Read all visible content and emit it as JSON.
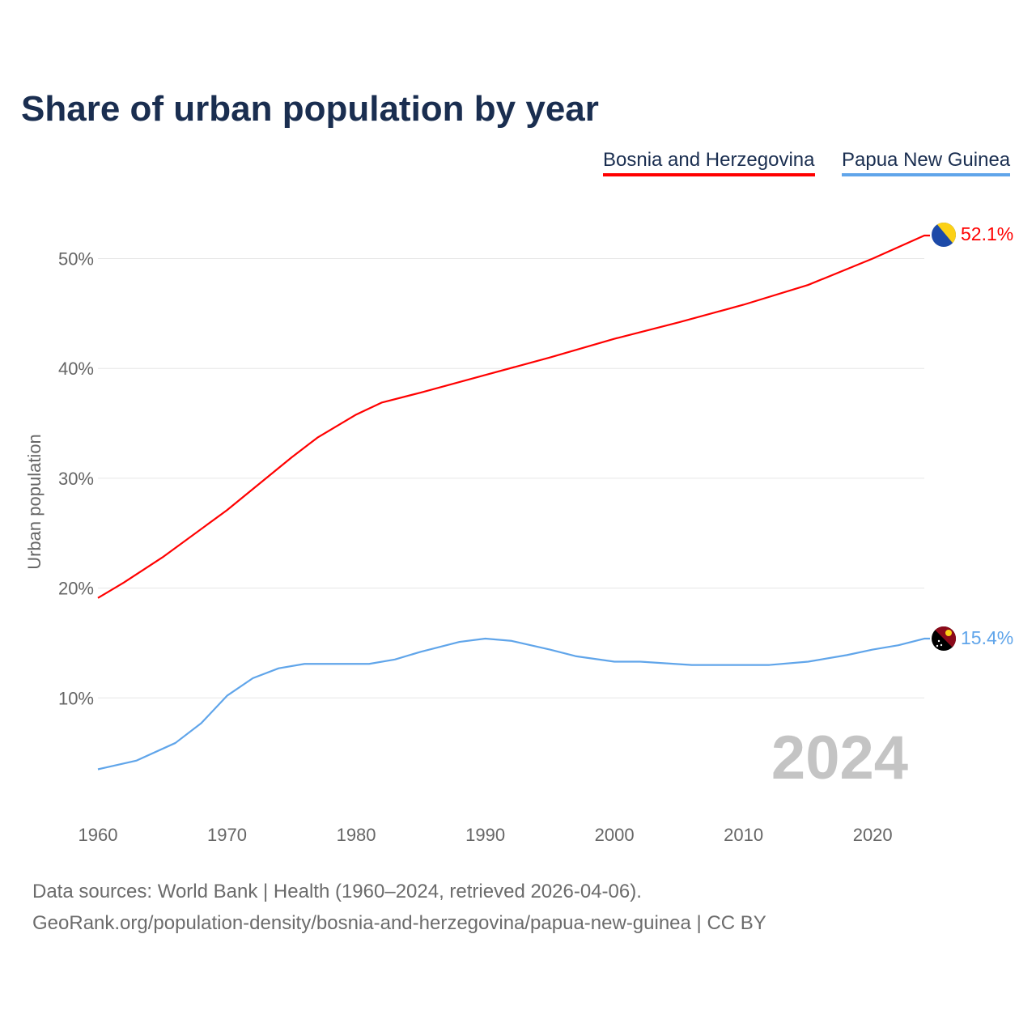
{
  "chart_data": {
    "type": "line",
    "title": "Share of urban population by year",
    "ylabel": "Urban population",
    "xlabel": "",
    "xlim": [
      1960,
      2024
    ],
    "ylim": [
      0,
      55
    ],
    "x_ticks": [
      "1960",
      "1970",
      "1980",
      "1990",
      "2000",
      "2010",
      "2020"
    ],
    "y_ticks": [
      "10%",
      "20%",
      "30%",
      "40%",
      "50%"
    ],
    "grid": true,
    "legend_position": "top-right",
    "year_watermark": "2024",
    "series": [
      {
        "name": "Bosnia and Herzegovina",
        "color": "#ff0000",
        "end_label": "52.1%",
        "x": [
          1960,
          1962,
          1965,
          1970,
          1975,
          1977,
          1980,
          1982,
          1985,
          1990,
          1995,
          2000,
          2005,
          2010,
          2015,
          2020,
          2024
        ],
        "values": [
          19.1,
          20.5,
          22.8,
          27.1,
          31.9,
          33.7,
          35.8,
          36.9,
          37.8,
          39.4,
          41.0,
          42.7,
          44.2,
          45.8,
          47.6,
          50.0,
          52.1
        ]
      },
      {
        "name": "Papua New Guinea",
        "color": "#60a5ea",
        "end_label": "15.4%",
        "x": [
          1960,
          1963,
          1966,
          1968,
          1970,
          1972,
          1974,
          1976,
          1981,
          1983,
          1985,
          1988,
          1990,
          1992,
          1995,
          1997,
          2000,
          2002,
          2006,
          2012,
          2015,
          2018,
          2020,
          2022,
          2024
        ],
        "values": [
          3.5,
          4.3,
          5.9,
          7.7,
          10.2,
          11.8,
          12.7,
          13.1,
          13.1,
          13.5,
          14.2,
          15.1,
          15.4,
          15.2,
          14.4,
          13.8,
          13.3,
          13.3,
          13.0,
          13.0,
          13.3,
          13.9,
          14.4,
          14.8,
          15.4
        ]
      }
    ]
  },
  "footer": {
    "line1": "Data sources: World Bank | Health (1960–2024, retrieved 2026-04-06).",
    "line2": "GeoRank.org/population-density/bosnia-and-herzegovina/papua-new-guinea | CC BY"
  }
}
